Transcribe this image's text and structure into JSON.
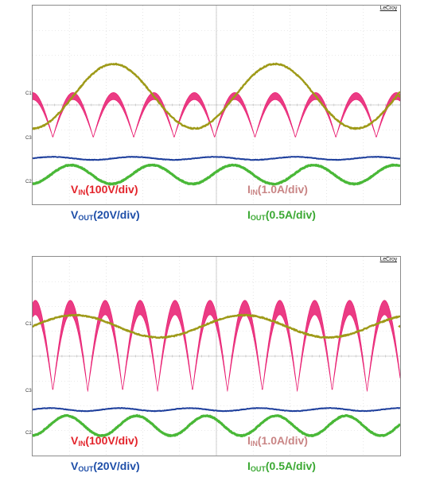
{
  "brand": "LeCroy",
  "colors": {
    "vin": "#e8196e",
    "iin": "#9e9a18",
    "vout": "#1e3f9c",
    "iout": "#49b837",
    "vin_label": "#e3242b",
    "iin_label": "#c98585",
    "vout_label": "#1e4ea8",
    "iout_label": "#3aa832"
  },
  "channels": {
    "c1": "C1",
    "c2": "C2",
    "c3": "C3"
  },
  "chart_data": [
    {
      "type": "line",
      "grid": true,
      "divisions": {
        "x": 10,
        "y": 8
      },
      "labels": [
        {
          "main": "V",
          "sub": "IN",
          "rest": "(100V/div)",
          "color_key": "vin_label"
        },
        {
          "main": "I",
          "sub": "IN",
          "rest": "(1.0A/div)",
          "color_key": "iin_label"
        },
        {
          "main": "V",
          "sub": "OUT",
          "rest": "(20V/div)",
          "color_key": "vout_label"
        },
        {
          "main": "I",
          "sub": "OUT",
          "rest": "(0.5A/div)",
          "color_key": "iout_label"
        }
      ],
      "series": [
        {
          "key": "vin",
          "waveform": "rectified_sine",
          "period_div": 2.2,
          "phase_div": 0.55,
          "baseline_div": 2.7,
          "amplitude_div": 1.8
        },
        {
          "key": "iin",
          "waveform": "sine",
          "period_div": 4.4,
          "phase_div": 1.1,
          "offset_div": 4.35,
          "amplitude_div": 1.3
        },
        {
          "key": "vout",
          "waveform": "sine",
          "period_div": 2.2,
          "phase_div": 0.0,
          "offset_div": 1.85,
          "amplitude_div": 0.06
        },
        {
          "key": "iout",
          "waveform": "sine",
          "period_div": 2.2,
          "phase_div": 0.5,
          "offset_div": 1.2,
          "amplitude_div": 0.38
        }
      ]
    },
    {
      "type": "line",
      "grid": true,
      "divisions": {
        "x": 10,
        "y": 8
      },
      "labels": [
        {
          "main": "V",
          "sub": "IN",
          "rest": "(100V/div)",
          "color_key": "vin_label"
        },
        {
          "main": "I",
          "sub": "IN",
          "rest": "(1.0A/div)",
          "color_key": "iin_label"
        },
        {
          "main": "V",
          "sub": "OUT",
          "rest": "(20V/div)",
          "color_key": "vout_label"
        },
        {
          "main": "I",
          "sub": "OUT",
          "rest": "(0.5A/div)",
          "color_key": "iout_label"
        }
      ],
      "series": [
        {
          "key": "vin",
          "waveform": "rectified_sine",
          "period_div": 1.9,
          "phase_div": 0.55,
          "baseline_div": 2.6,
          "amplitude_div": 3.65
        },
        {
          "key": "iin",
          "waveform": "sine",
          "period_div": 4.6,
          "phase_div": 0.0,
          "offset_div": 5.2,
          "amplitude_div": 0.45
        },
        {
          "key": "vout",
          "waveform": "sine",
          "period_div": 1.9,
          "phase_div": 0.0,
          "offset_div": 1.85,
          "amplitude_div": 0.06
        },
        {
          "key": "iout",
          "waveform": "sine",
          "period_div": 1.9,
          "phase_div": 0.45,
          "offset_div": 1.2,
          "amplitude_div": 0.4
        }
      ]
    }
  ]
}
